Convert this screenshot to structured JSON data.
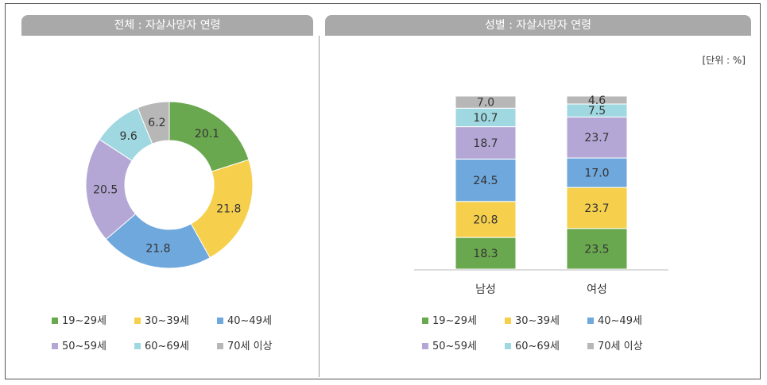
{
  "left_panel": {
    "title": "전체 : 자살사망자 연령"
  },
  "right_panel": {
    "title": "성별 : 자살사망자 연령",
    "unit": "[단위 : %]"
  },
  "colors": {
    "19-29": "#6aa84f",
    "30-39": "#f6d04d",
    "40-49": "#6fa8dc",
    "50-59": "#b4a7d6",
    "60-69": "#9fd8e0",
    "70+": "#b7b7b7"
  },
  "legend": [
    {
      "label": "19~29세",
      "key": "19-29"
    },
    {
      "label": "30~39세",
      "key": "30-39"
    },
    {
      "label": "40~49세",
      "key": "40-49"
    },
    {
      "label": "50~59세",
      "key": "50-59"
    },
    {
      "label": "60~69세",
      "key": "60-69"
    },
    {
      "label": "70세 이상",
      "key": "70+"
    }
  ],
  "chart_data": [
    {
      "type": "pie",
      "title": "전체 : 자살사망자 연령",
      "categories": [
        "19~29세",
        "30~39세",
        "40~49세",
        "50~59세",
        "60~69세",
        "70세 이상"
      ],
      "values": [
        20.1,
        21.8,
        21.8,
        20.5,
        9.6,
        6.2
      ],
      "style": "donut"
    },
    {
      "type": "bar",
      "stacked": true,
      "title": "성별 : 자살사망자 연령",
      "unit": "[단위 : %]",
      "categories": [
        "남성",
        "여성"
      ],
      "series": [
        {
          "name": "19~29세",
          "values": [
            18.3,
            23.5
          ]
        },
        {
          "name": "30~39세",
          "values": [
            20.8,
            23.7
          ]
        },
        {
          "name": "40~49세",
          "values": [
            24.5,
            17.0
          ]
        },
        {
          "name": "50~59세",
          "values": [
            18.7,
            23.7
          ]
        },
        {
          "name": "60~69세",
          "values": [
            10.7,
            7.5
          ]
        },
        {
          "name": "70세 이상",
          "values": [
            7.0,
            4.6
          ]
        }
      ],
      "ylim": [
        0,
        100
      ]
    }
  ]
}
